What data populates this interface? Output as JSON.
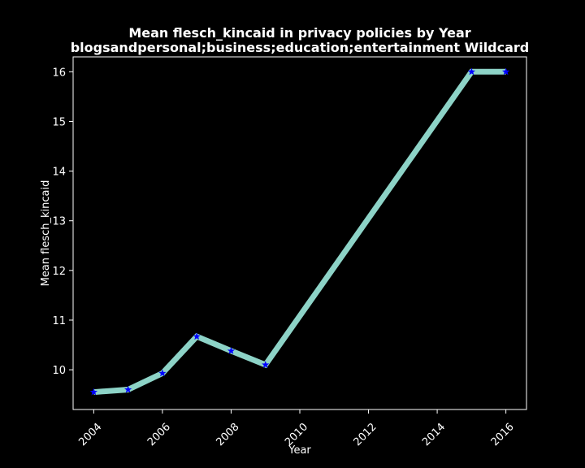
{
  "chart_data": {
    "type": "line",
    "title": "Mean flesch_kincaid in privacy policies by Year",
    "subtitle": "blogsandpersonal;business;education;entertainment Wildcard",
    "xlabel": "Year",
    "ylabel": "Mean flesch_kincaid",
    "xlim": [
      2003.4,
      2016.6
    ],
    "ylim": [
      9.2,
      16.3
    ],
    "x_ticks": [
      "2004",
      "2006",
      "2008",
      "2010",
      "2012",
      "2014",
      "2016"
    ],
    "y_ticks": [
      "10",
      "11",
      "12",
      "13",
      "14",
      "15",
      "16"
    ],
    "grid": false,
    "legend": "none",
    "series": [
      {
        "x": [
          2004,
          2005,
          2006,
          2007,
          2008,
          2009,
          2015,
          2016
        ],
        "values": [
          9.55,
          9.6,
          9.93,
          10.67,
          10.38,
          10.1,
          16.0,
          16.0
        ],
        "line_color": "#8dd3c7",
        "marker": "star",
        "marker_color": "#0000ff"
      }
    ],
    "background": "#000000",
    "foreground": "#ffffff"
  }
}
